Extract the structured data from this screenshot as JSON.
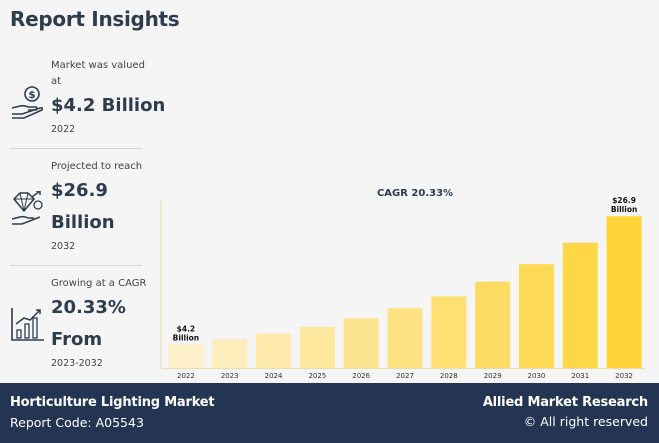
{
  "page": {
    "title": "Report Insights"
  },
  "stats": [
    {
      "label": "Market was valued at",
      "value": "$4.2 Billion",
      "period": "2022",
      "icon": "money-hand-icon"
    },
    {
      "label": "Projected to reach",
      "value_line1": "$26.9",
      "value_line2": "Billion",
      "period": "2032",
      "icon": "diamond-growth-icon"
    },
    {
      "label": "Growing at a CAGR",
      "value_line1": "20.33%",
      "value_line2": "From",
      "period": "2023-2032",
      "icon": "growth-chart-icon"
    }
  ],
  "chart_data": {
    "type": "bar",
    "title": "CAGR 20.33%",
    "categories": [
      "2022",
      "2023",
      "2024",
      "2025",
      "2026",
      "2027",
      "2028",
      "2029",
      "2030",
      "2031",
      "2032"
    ],
    "values": [
      4.2,
      5.1,
      6.1,
      7.3,
      8.8,
      10.6,
      12.7,
      15.3,
      18.4,
      22.2,
      26.9
    ],
    "ylim": [
      0,
      28
    ],
    "grid": false,
    "data_labels": [
      {
        "category": "2022",
        "lines": [
          "$4.2",
          "Billion"
        ]
      },
      {
        "category": "2032",
        "lines": [
          "$26.9",
          "Billion"
        ]
      }
    ],
    "colors": {
      "start": "#fdf0c8",
      "end": "#fed439"
    }
  },
  "footer": {
    "market_name": "Horticulture Lighting Market",
    "report_code": "Report Code: A05543",
    "brand": "Allied Market Research",
    "rights": "© All right reserved"
  }
}
